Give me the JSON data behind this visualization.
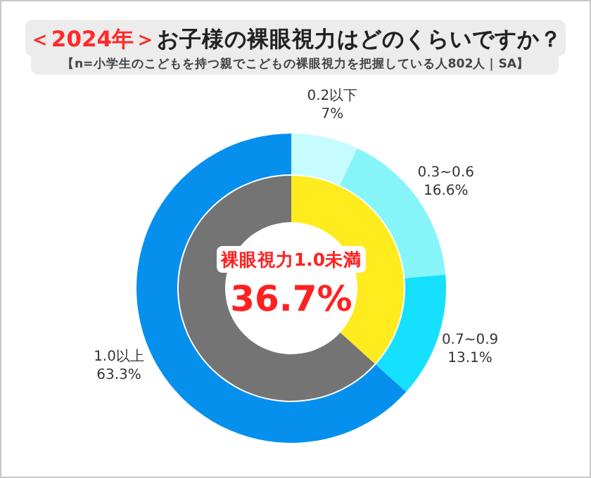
{
  "chart_data": [
    {
      "type": "donut",
      "title": "**＜2024年＞**お子様の裸眼視力はどのくらいですか？",
      "subtitle": "【n=小学生のこどもを持つ親でこどもの裸眼視力を把握している人802人｜SA】",
      "categories": [
        "0.2以下",
        "0.3~0.6",
        "0.7~0.9",
        "1.0以上"
      ],
      "values": [
        7,
        16.6,
        13.1,
        63.3
      ],
      "colors": [
        "#c6fbff",
        "#86f5f9",
        "#16e0ff",
        "#0590ee"
      ],
      "value_labels": [
        "7%",
        "16.6%",
        "13.1%",
        "63.3%"
      ]
    },
    {
      "type": "donut",
      "categories": [
        "裸眼視力1.0未満",
        null
      ],
      "values": [
        36.7,
        63.3
      ],
      "colors": [
        "#ffeb1e",
        "#747474"
      ],
      "value_labels": [
        "36.7%",
        null
      ]
    }
  ]
}
